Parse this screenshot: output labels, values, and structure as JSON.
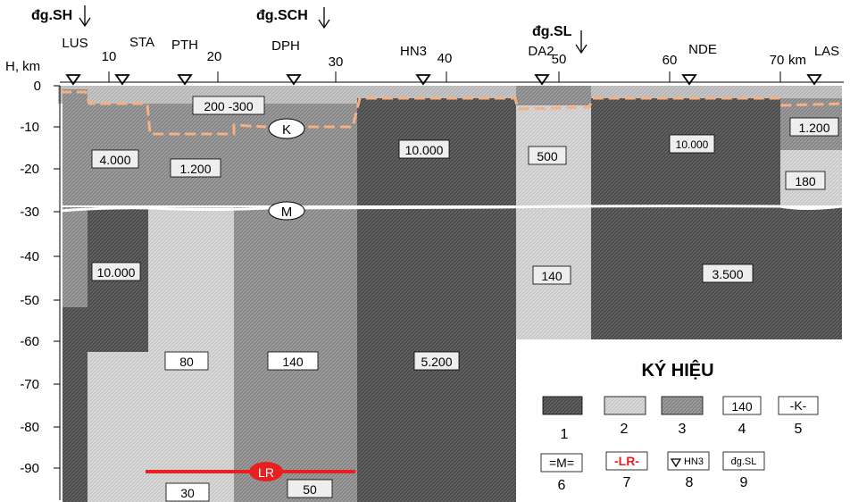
{
  "faults": [
    {
      "label": "đg.SH"
    },
    {
      "label": "đg.SCH"
    },
    {
      "label": "đg.SL"
    }
  ],
  "distance_axis": {
    "ticks": [
      "10",
      "20",
      "30",
      "40",
      "50",
      "60",
      "70"
    ],
    "unit": "km"
  },
  "depth_axis": {
    "label": "H, km",
    "ticks": [
      "0",
      "-10",
      "-20",
      "-30",
      "-40",
      "-50",
      "-60",
      "-70",
      "-80",
      "-90"
    ]
  },
  "stations": [
    {
      "code": "LUS"
    },
    {
      "code": "STA"
    },
    {
      "code": "PTH"
    },
    {
      "code": "DPH"
    },
    {
      "code": "HN3"
    },
    {
      "code": "DA2"
    },
    {
      "code": "NDE"
    },
    {
      "code": "LAS"
    }
  ],
  "resistivity_values": [
    {
      "value": "200 -300"
    },
    {
      "value": "4.000"
    },
    {
      "value": "1.200"
    },
    {
      "value": "10.000"
    },
    {
      "value": "500"
    },
    {
      "value": "10.000"
    },
    {
      "value": "1.200"
    },
    {
      "value": "180"
    },
    {
      "value": "10.000"
    },
    {
      "value": "140"
    },
    {
      "value": "3.500"
    },
    {
      "value": "80"
    },
    {
      "value": "140"
    },
    {
      "value": "5.200"
    },
    {
      "value": "30"
    },
    {
      "value": "50"
    }
  ],
  "boundaries": {
    "K": "K",
    "M": "M",
    "LR": "LR"
  },
  "legend": {
    "title": "KÝ HIỆU",
    "sample_value": "140",
    "sample_K": "-K-",
    "sample_M": "=M=",
    "sample_LR": "-LR-",
    "sample_station": "HN3",
    "sample_fault": "đg.SL",
    "numbers": [
      "1",
      "2",
      "3",
      "4",
      "5",
      "6",
      "7",
      "8",
      "9"
    ]
  },
  "colors": {
    "dark": "#4f4f4f",
    "medium": "#8a8a8a",
    "light": "#c9c9c9",
    "surface": "#bdbdbd",
    "k_line": "#f4b184",
    "m_line": "#ffffff",
    "lr_line": "#e8201f"
  }
}
